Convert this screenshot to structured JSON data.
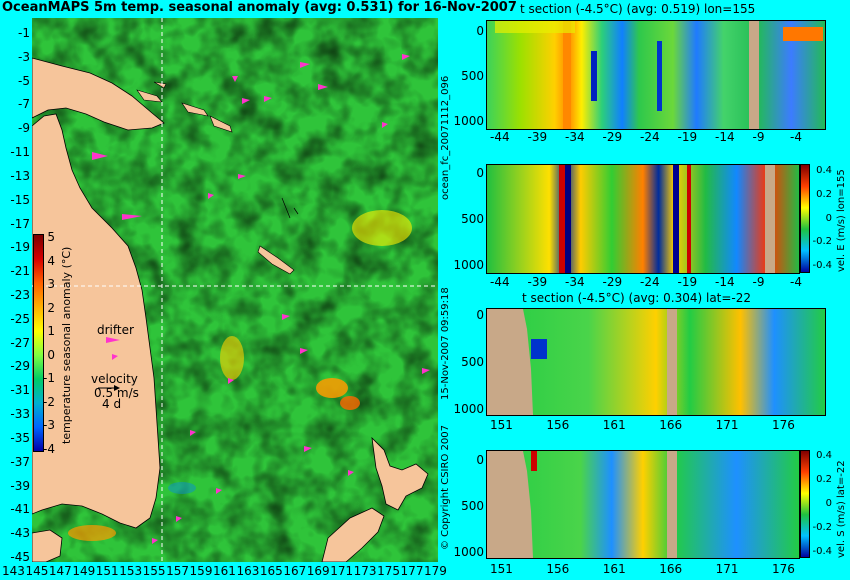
{
  "main_title": "OceanMAPS 5m temp. seasonal anomaly (avg: 0.531) for 16-Nov-2007",
  "map": {
    "y_ticks": [
      "-1",
      "-3",
      "-5",
      "-7",
      "-9",
      "-11",
      "-13",
      "-15",
      "-17",
      "-19",
      "-21",
      "-23",
      "-25",
      "-27",
      "-29",
      "-31",
      "-33",
      "-35",
      "-37",
      "-39",
      "-41",
      "-43",
      "-45"
    ],
    "x_ticks": [
      "143",
      "145",
      "147",
      "149",
      "151",
      "153",
      "155",
      "157",
      "159",
      "161",
      "163",
      "165",
      "167",
      "169",
      "171",
      "173",
      "175",
      "177",
      "179"
    ],
    "colorbar_ticks": [
      "5",
      "4",
      "3",
      "2",
      "1",
      "0",
      "-1",
      "-2",
      "-3",
      "-4"
    ],
    "colorbar_label": "temperature seasonal anomaly (°C)",
    "drifter_label": "drifter",
    "velocity_label": "velocity",
    "velocity_value": "0.5 m/s",
    "velocity_days": "4 d",
    "crosshair_lon": 155,
    "crosshair_lat": -22
  },
  "panel1": {
    "title": "t section (-4.5°C) (avg: 0.519) lon=155",
    "y_ticks": [
      "0",
      "500",
      "1000"
    ],
    "x_ticks": [
      "-44",
      "-39",
      "-34",
      "-29",
      "-24",
      "-19",
      "-14",
      "-9",
      "-4"
    ]
  },
  "panel2": {
    "y_ticks": [
      "0",
      "500",
      "1000"
    ],
    "x_ticks": [
      "-44",
      "-39",
      "-34",
      "-29",
      "-24",
      "-19",
      "-14",
      "-9",
      "-4"
    ],
    "cb_ticks": [
      "0.4",
      "0.2",
      "0",
      "-0.2",
      "-0.4"
    ],
    "cb_label": "vel. E (m/s) lon=155"
  },
  "panel3": {
    "title": "t section (-4.5°C) (avg: 0.304) lat=-22",
    "y_ticks": [
      "0",
      "500",
      "1000"
    ],
    "x_ticks": [
      "151",
      "156",
      "161",
      "166",
      "171",
      "176"
    ]
  },
  "panel4": {
    "y_ticks": [
      "0",
      "500",
      "1000"
    ],
    "x_ticks": [
      "151",
      "156",
      "161",
      "166",
      "171",
      "176"
    ],
    "cb_ticks": [
      "0.4",
      "0.2",
      "0",
      "-0.2",
      "-0.4"
    ],
    "cb_label": "vel. S (m/s) lat=-22"
  },
  "side_labels": {
    "forecast": "ocean_fc_20071112_096",
    "issued": "15-Nov-2007 09:59:18",
    "copyright": "© Copyright CSIRO 2007"
  },
  "colors": {
    "background": "#00ffff",
    "land": "#f6c59b",
    "land_section": "#c8a888",
    "ocean_green": "#33cc33",
    "anomaly_warm": "#ff8800",
    "anomaly_cool": "#0044cc",
    "drifter": "#ff33cc"
  }
}
